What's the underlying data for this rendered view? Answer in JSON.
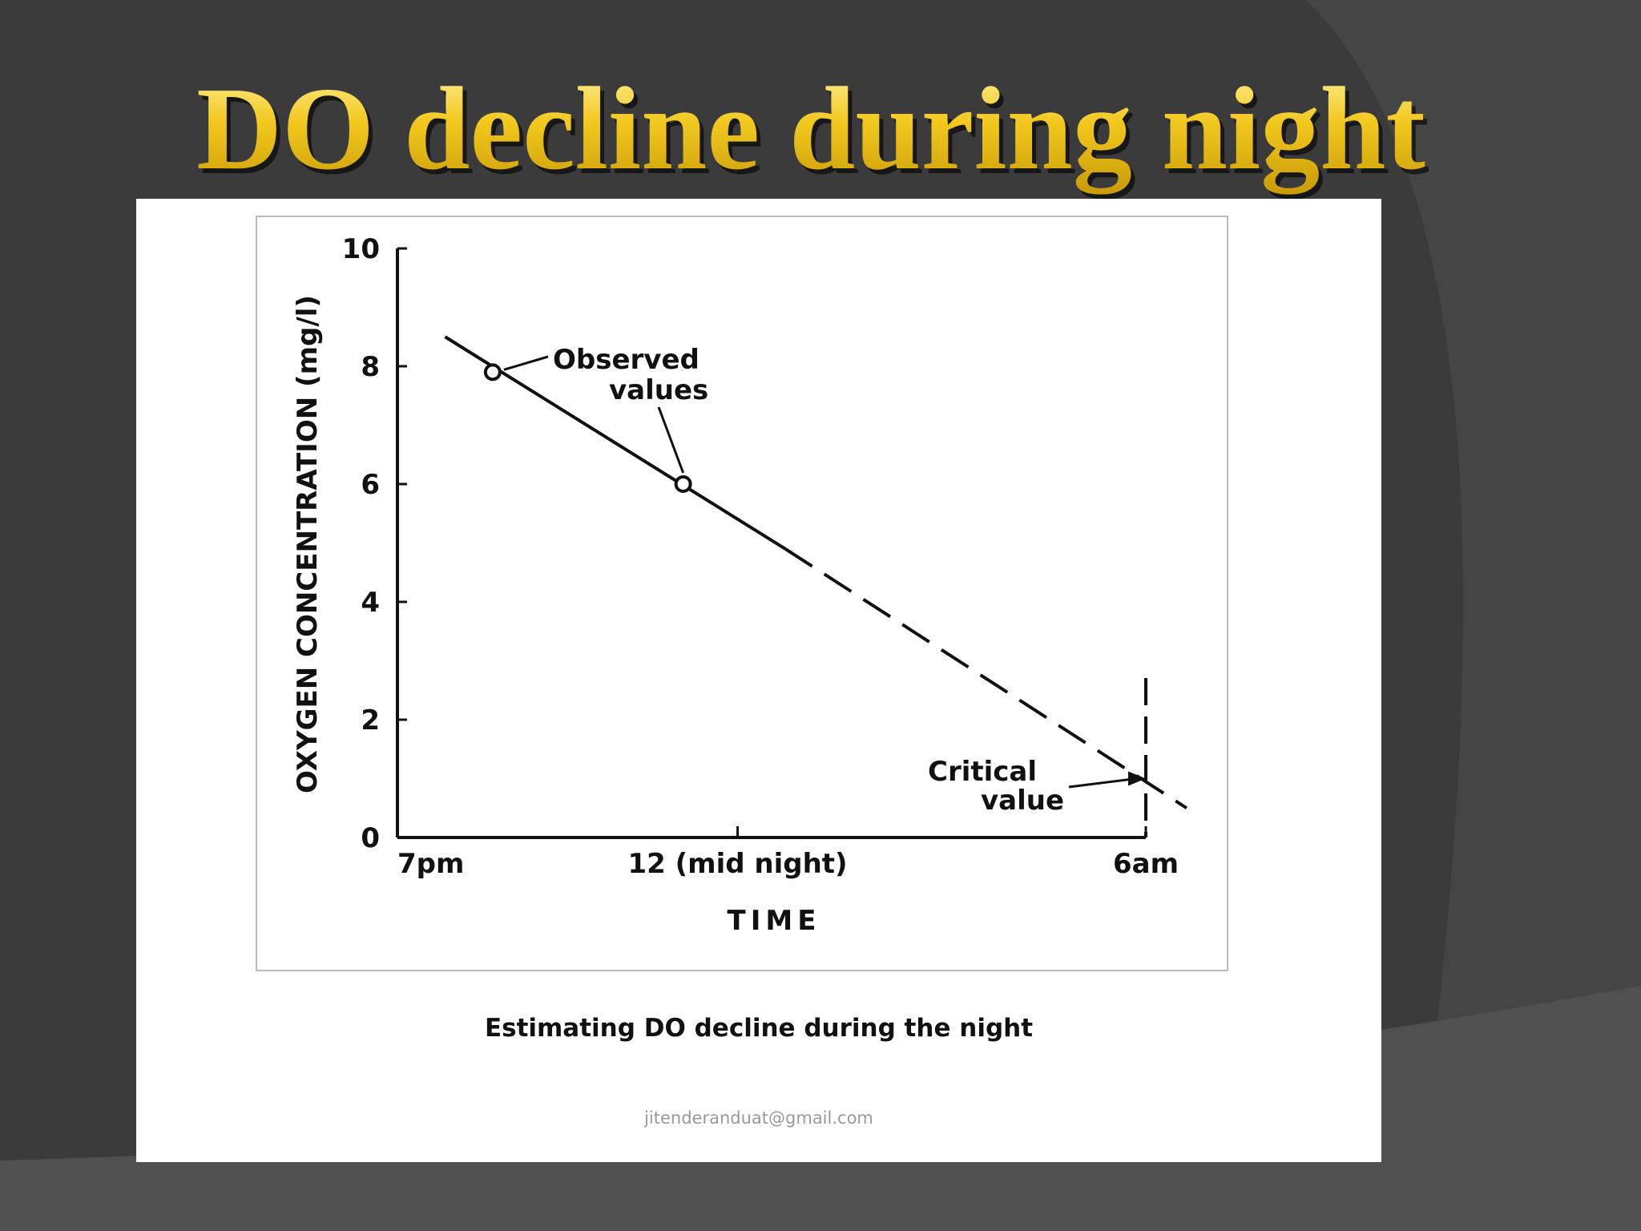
{
  "slide_title": "DO decline during night",
  "chart_data": {
    "type": "line",
    "x_label": "TIME",
    "y_label": "OXYGEN CONCENTRATION (mg/l)",
    "xlim": [
      0,
      11
    ],
    "ylim": [
      0,
      10
    ],
    "xticks": [
      {
        "value": 0,
        "label": "7pm"
      },
      {
        "value": 5,
        "label": "12 (mid night)"
      },
      {
        "value": 11,
        "label": "6am"
      }
    ],
    "yticks": [
      0,
      2,
      4,
      6,
      8,
      10
    ],
    "series": [
      {
        "style": "solid",
        "x": [
          0.7,
          5.7
        ],
        "values": [
          8.5,
          4.9
        ]
      },
      {
        "style": "dashed",
        "x": [
          5.7,
          11.6
        ],
        "values": [
          4.9,
          0.5
        ]
      }
    ],
    "observed": {
      "label": [
        "Observed",
        "values"
      ],
      "x": [
        1.4,
        4.2
      ],
      "values": [
        7.9,
        6.0
      ]
    },
    "critical": {
      "label": [
        "Critical",
        "value"
      ],
      "x": 11,
      "value": 1.0
    },
    "color": "#111111"
  },
  "caption": "Estimating DO decline during the night",
  "email": "jitenderanduat@gmail.com"
}
